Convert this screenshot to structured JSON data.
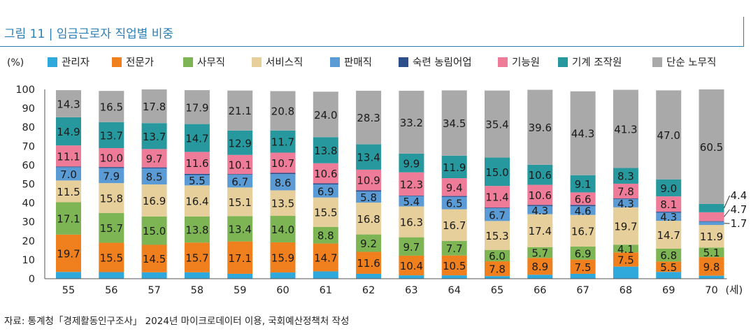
{
  "figure_title": "그림 11 | 임금근로자 직업별 비중",
  "source": "자료: 통계청「경제활동인구조사」 2024년 마이크로데이터 이용, 국회예산정책처 작성",
  "chart_data": {
    "type": "bar",
    "stacked": true,
    "title": "",
    "ylabel": "(%)",
    "xlabel": "",
    "x_unit_label": "(세)",
    "ylim": [
      0,
      100
    ],
    "yticks": [
      0,
      10,
      20,
      30,
      40,
      50,
      60,
      70,
      80,
      90,
      100
    ],
    "legend_position": "top",
    "categories": [
      "55",
      "56",
      "57",
      "58",
      "59",
      "60",
      "61",
      "62",
      "63",
      "64",
      "65",
      "66",
      "67",
      "68",
      "69",
      "70"
    ],
    "series": [
      {
        "name": "관리자",
        "color": "#2fa9db",
        "values": [
          3.6,
          3.5,
          3.4,
          3.4,
          2.6,
          3.3,
          3.9,
          2.6,
          1.8,
          1.8,
          1.4,
          2.1,
          2.6,
          6.4,
          3.6,
          1.6
        ]
      },
      {
        "name": "전문가",
        "color": "#f07f1e",
        "values": [
          19.7,
          15.5,
          14.5,
          15.7,
          17.1,
          15.9,
          14.7,
          11.6,
          10.4,
          10.5,
          7.8,
          8.9,
          7.5,
          7.5,
          5.5,
          9.8
        ]
      },
      {
        "name": "사무직",
        "color": "#7db554",
        "values": [
          17.1,
          15.7,
          15.0,
          13.8,
          13.4,
          14.0,
          8.8,
          9.2,
          9.7,
          7.7,
          6.0,
          5.7,
          6.9,
          4.1,
          6.8,
          5.1
        ]
      },
      {
        "name": "서비스직",
        "color": "#e6cf9a",
        "values": [
          11.5,
          15.8,
          16.9,
          16.4,
          15.1,
          13.5,
          15.5,
          16.8,
          16.3,
          16.7,
          15.3,
          17.4,
          16.7,
          19.7,
          14.7,
          11.9
        ]
      },
      {
        "name": "판매직",
        "color": "#5b9bd5",
        "values": [
          7.0,
          7.9,
          8.5,
          5.5,
          6.7,
          8.6,
          6.9,
          5.8,
          5.4,
          6.5,
          6.7,
          4.3,
          4.6,
          4.3,
          4.3,
          1.7
        ]
      },
      {
        "name": "숙련 농림어업",
        "color": "#2c4f8c",
        "values": [
          0.4,
          0.6,
          0.5,
          0.6,
          0.4,
          0.6,
          0.6,
          0.7,
          0.3,
          0.5,
          0.4,
          0.6,
          0.7,
          0.4,
          0.5,
          0.3
        ]
      },
      {
        "name": "기능원",
        "color": "#ee7c98",
        "values": [
          11.1,
          10.0,
          9.7,
          11.6,
          10.1,
          10.7,
          10.6,
          10.9,
          12.3,
          9.4,
          11.4,
          10.6,
          6.6,
          7.8,
          8.1,
          4.7
        ]
      },
      {
        "name": "기계 조작원",
        "color": "#27999e",
        "values": [
          14.9,
          13.7,
          13.7,
          14.7,
          12.9,
          11.7,
          13.8,
          13.4,
          9.9,
          11.9,
          15.0,
          10.6,
          9.1,
          8.3,
          9.0,
          4.4
        ]
      },
      {
        "name": "단순 노무직",
        "color": "#a9a9a9",
        "values": [
          14.3,
          16.5,
          17.8,
          17.9,
          21.1,
          20.8,
          24.0,
          28.3,
          33.2,
          34.5,
          35.4,
          39.6,
          44.3,
          41.3,
          47.0,
          60.5
        ]
      }
    ],
    "data_labels": [
      {
        "series": "전문가",
        "values": [
          "19.7",
          "15.5",
          "14.5",
          "15.7",
          "17.1",
          "15.9",
          "14.7",
          "11.6",
          "10.4",
          "10.5",
          "7.8",
          "8.9",
          "7.5",
          "7.5",
          "5.5",
          "9.8"
        ]
      },
      {
        "series": "사무직",
        "values": [
          "17.1",
          "15.7",
          "15.0",
          "13.8",
          "13.4",
          "14.0",
          "8.8",
          "9.2",
          "9.7",
          "7.7",
          "6.0",
          "5.7",
          "6.9",
          "4.1",
          "6.8",
          "5.1"
        ]
      },
      {
        "series": "서비스직",
        "values": [
          "11.5",
          "15.8",
          "16.9",
          "16.4",
          "15.1",
          "13.5",
          "15.5",
          "16.8",
          "16.3",
          "16.7",
          "15.3",
          "17.4",
          "16.7",
          "19.7",
          "14.7",
          "11.9"
        ]
      },
      {
        "series": "판매직",
        "values": [
          "7.0",
          "7.9",
          "8.5",
          "5.5",
          "6.7",
          "8.6",
          "6.9",
          "5.8",
          "5.4",
          "6.5",
          "6.7",
          "4.3",
          "4.6",
          "4.3",
          "4.3",
          "1.7"
        ]
      },
      {
        "series": "기능원",
        "values": [
          "11.1",
          "10.0",
          "9.7",
          "11.6",
          "10.1",
          "10.7",
          "10.6",
          "10.9",
          "12.3",
          "9.4",
          "11.4",
          "10.6",
          "6.6",
          "7.8",
          "8.1",
          "4.7"
        ]
      },
      {
        "series": "기계 조작원",
        "values": [
          "14.9",
          "13.7",
          "13.7",
          "14.7",
          "12.9",
          "11.7",
          "13.8",
          "13.4",
          "9.9",
          "11.9",
          "15.0",
          "10.6",
          "9.1",
          "8.3",
          "9.0",
          "4.4"
        ]
      },
      {
        "series": "단순 노무직",
        "values": [
          "14.3",
          "16.5",
          "17.8",
          "17.9",
          "21.1",
          "20.8",
          "24.0",
          "28.3",
          "33.2",
          "34.5",
          "35.4",
          "39.6",
          "44.3",
          "41.3",
          "47.0",
          "60.5"
        ]
      }
    ],
    "outside_labels_last_bar": [
      "4.4",
      "4.7",
      "1.7"
    ]
  }
}
